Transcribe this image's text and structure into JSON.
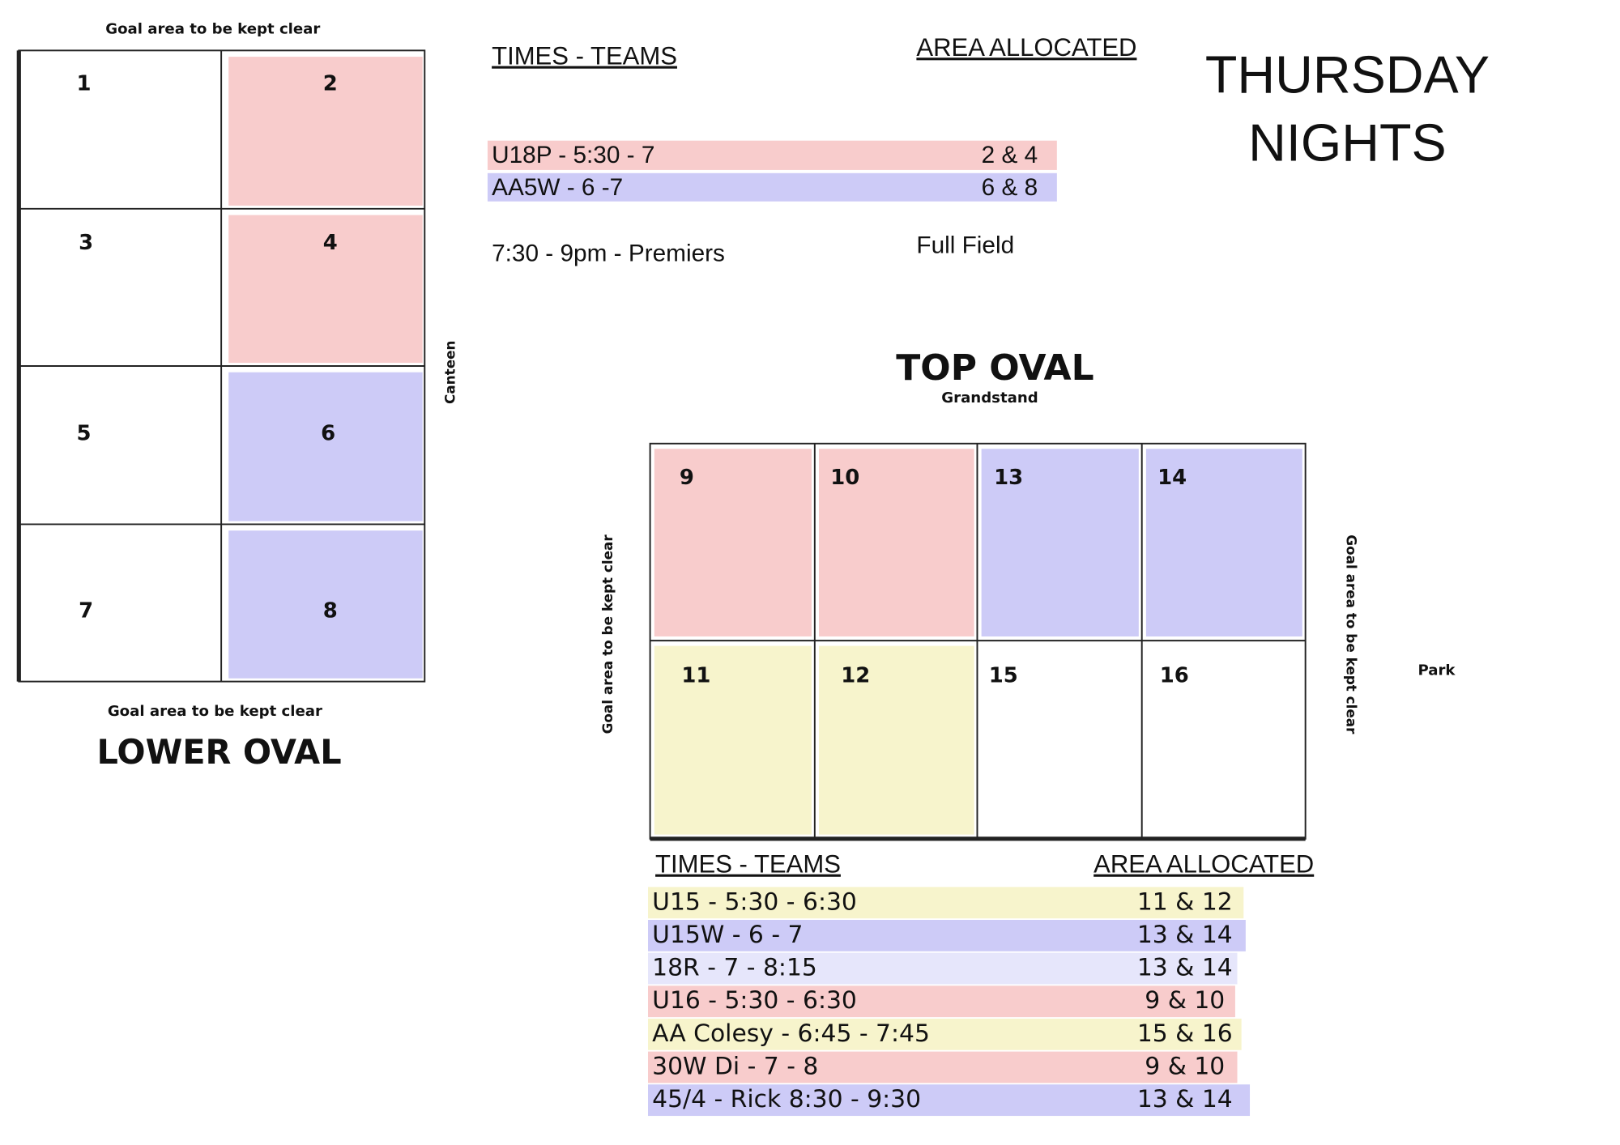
{
  "title": [
    "THURSDAY",
    "NIGHTS"
  ],
  "lower_oval": {
    "title": "LOWER OVAL",
    "top_note": "Goal area to be kept clear",
    "bottom_note": "Goal area to be kept clear",
    "side_note": "Canteen",
    "cells": [
      "1",
      "2",
      "3",
      "4",
      "5",
      "6",
      "7",
      "8"
    ]
  },
  "lower_schedule": {
    "headers": [
      "TIMES - TEAMS",
      "AREA ALLOCATED"
    ],
    "rows": [
      [
        "U18P - 5:30 - 7",
        "2 & 4"
      ],
      [
        "AA5W - 6 -7",
        "6 & 8"
      ],
      [
        "7:30 - 9pm - Premiers",
        "Full Field"
      ]
    ]
  },
  "top_oval": {
    "title": "TOP OVAL",
    "subtitle": "Grandstand",
    "left_note": "Goal area to be kept clear",
    "right_note": "Goal area to be kept clear",
    "side_note": "Park",
    "cells": [
      "9",
      "10",
      "13",
      "14",
      "11",
      "12",
      "15",
      "16"
    ]
  },
  "top_schedule": {
    "headers": [
      "TIMES - TEAMS",
      "AREA ALLOCATED"
    ],
    "rows": [
      [
        "U15 - 5:30 - 6:30",
        "11 & 12"
      ],
      [
        "U15W - 6 - 7",
        "13 & 14"
      ],
      [
        "18R - 7 - 8:15",
        "13 & 14"
      ],
      [
        "U16 - 5:30 - 6:30",
        "9 & 10"
      ],
      [
        "AA Colesy - 6:45 - 7:45",
        "15 & 16"
      ],
      [
        "30W Di  - 7 - 8",
        "9 & 10"
      ],
      [
        "45/4 - Rick 8:30 - 9:30",
        "13 & 14"
      ]
    ]
  }
}
